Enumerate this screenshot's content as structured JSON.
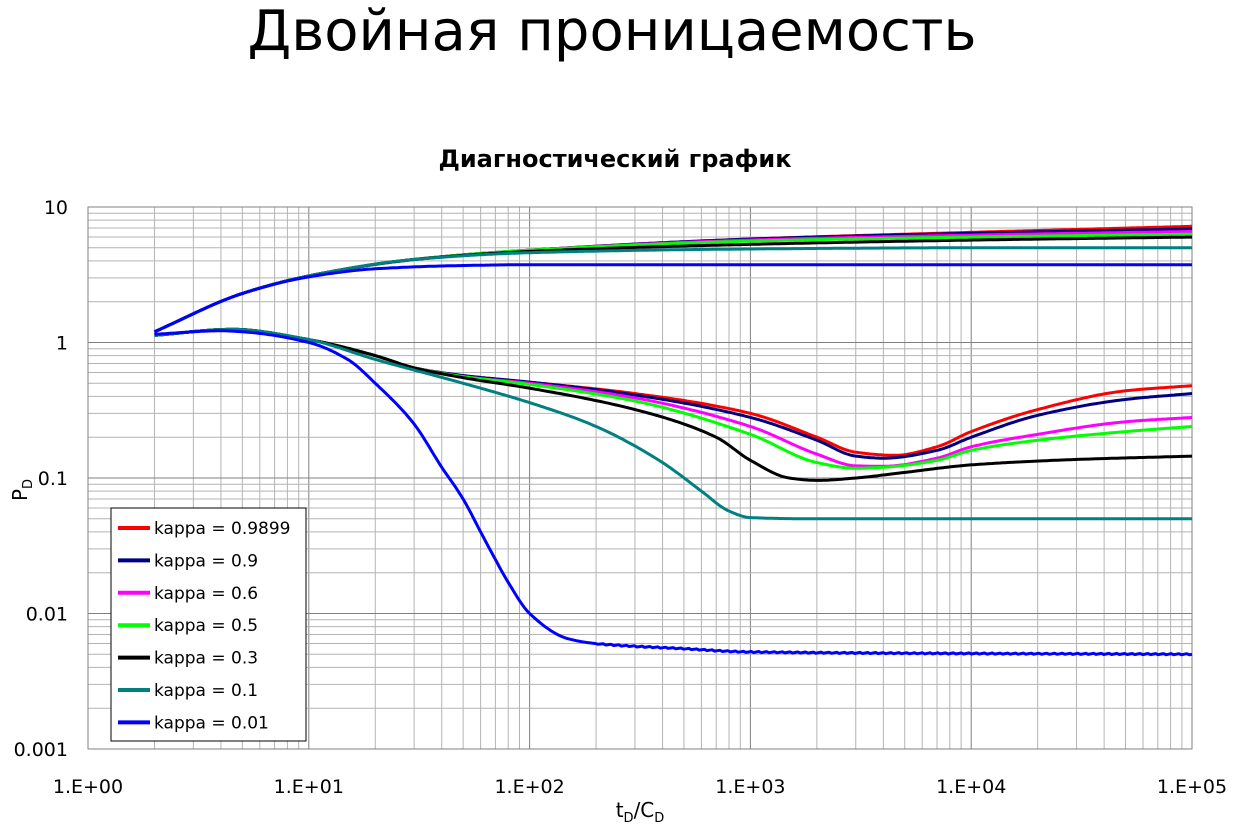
{
  "page": {
    "title": "Двойная проницаемость"
  },
  "chart_data": {
    "type": "line",
    "title": "Диагностический график",
    "xlabel": "tD/CD",
    "xlabel_main": "t",
    "xlabel_sub1": "D",
    "xlabel_slash": "/C",
    "xlabel_sub2": "D",
    "ylabel": "PD",
    "ylabel_main": "P",
    "ylabel_sub": "D",
    "x_scale": "log",
    "y_scale": "log",
    "xlim": [
      1,
      100000
    ],
    "ylim": [
      0.001,
      10
    ],
    "x_ticks": [
      "1.E+00",
      "1.E+01",
      "1.E+02",
      "1.E+03",
      "1.E+04",
      "1.E+05"
    ],
    "y_ticks": [
      "0.001",
      "0.01",
      "0.1",
      "1",
      "10"
    ],
    "grid": true,
    "legend_position": "bottom-left",
    "series": [
      {
        "name": "kappa = 0.9899",
        "color": "#ff0000",
        "pressure": [
          [
            2,
            1.2
          ],
          [
            5,
            2.3
          ],
          [
            10,
            3.1
          ],
          [
            30,
            4.1
          ],
          [
            100,
            4.8
          ],
          [
            1000,
            5.8
          ],
          [
            10000,
            6.5
          ],
          [
            100000,
            7.2
          ]
        ],
        "derivative": [
          [
            2,
            1.13
          ],
          [
            4.5,
            1.25
          ],
          [
            10,
            1.05
          ],
          [
            20,
            0.8
          ],
          [
            30,
            0.65
          ],
          [
            50,
            0.57
          ],
          [
            100,
            0.51
          ],
          [
            300,
            0.42
          ],
          [
            1000,
            0.3
          ],
          [
            2000,
            0.2
          ],
          [
            3000,
            0.155
          ],
          [
            4500,
            0.147
          ],
          [
            7000,
            0.17
          ],
          [
            10000,
            0.22
          ],
          [
            20000,
            0.32
          ],
          [
            50000,
            0.44
          ],
          [
            100000,
            0.48
          ]
        ]
      },
      {
        "name": "kappa = 0.9",
        "color": "#000080",
        "pressure": [
          [
            2,
            1.2
          ],
          [
            5,
            2.3
          ],
          [
            10,
            3.1
          ],
          [
            30,
            4.1
          ],
          [
            100,
            4.8
          ],
          [
            1000,
            5.8
          ],
          [
            10000,
            6.4
          ],
          [
            100000,
            6.9
          ]
        ],
        "derivative": [
          [
            2,
            1.13
          ],
          [
            4.5,
            1.25
          ],
          [
            10,
            1.05
          ],
          [
            20,
            0.8
          ],
          [
            30,
            0.65
          ],
          [
            50,
            0.57
          ],
          [
            100,
            0.51
          ],
          [
            300,
            0.41
          ],
          [
            1000,
            0.28
          ],
          [
            2000,
            0.19
          ],
          [
            3000,
            0.145
          ],
          [
            4000,
            0.14
          ],
          [
            7000,
            0.16
          ],
          [
            10000,
            0.2
          ],
          [
            20000,
            0.29
          ],
          [
            50000,
            0.38
          ],
          [
            100000,
            0.42
          ]
        ]
      },
      {
        "name": "kappa = 0.6",
        "color": "#ff00ff",
        "pressure": [
          [
            2,
            1.2
          ],
          [
            5,
            2.3
          ],
          [
            10,
            3.1
          ],
          [
            30,
            4.1
          ],
          [
            100,
            4.8
          ],
          [
            1000,
            5.7
          ],
          [
            10000,
            6.2
          ],
          [
            100000,
            6.6
          ]
        ],
        "derivative": [
          [
            2,
            1.13
          ],
          [
            4.5,
            1.25
          ],
          [
            10,
            1.05
          ],
          [
            20,
            0.8
          ],
          [
            30,
            0.65
          ],
          [
            50,
            0.56
          ],
          [
            100,
            0.5
          ],
          [
            300,
            0.39
          ],
          [
            1000,
            0.24
          ],
          [
            2000,
            0.15
          ],
          [
            3000,
            0.123
          ],
          [
            4000,
            0.122
          ],
          [
            7000,
            0.14
          ],
          [
            10000,
            0.17
          ],
          [
            20000,
            0.21
          ],
          [
            50000,
            0.26
          ],
          [
            100000,
            0.28
          ]
        ]
      },
      {
        "name": "kappa = 0.5",
        "color": "#00ff00",
        "pressure": [
          [
            2,
            1.2
          ],
          [
            5,
            2.3
          ],
          [
            10,
            3.1
          ],
          [
            30,
            4.1
          ],
          [
            100,
            4.8
          ],
          [
            1000,
            5.6
          ],
          [
            10000,
            6.0
          ],
          [
            100000,
            6.3
          ]
        ],
        "derivative": [
          [
            2,
            1.13
          ],
          [
            4.5,
            1.25
          ],
          [
            10,
            1.05
          ],
          [
            20,
            0.8
          ],
          [
            30,
            0.65
          ],
          [
            50,
            0.56
          ],
          [
            100,
            0.49
          ],
          [
            300,
            0.37
          ],
          [
            1000,
            0.21
          ],
          [
            2000,
            0.13
          ],
          [
            3000,
            0.118
          ],
          [
            4000,
            0.12
          ],
          [
            7000,
            0.135
          ],
          [
            10000,
            0.16
          ],
          [
            20000,
            0.19
          ],
          [
            50000,
            0.22
          ],
          [
            100000,
            0.24
          ]
        ]
      },
      {
        "name": "kappa = 0.3",
        "color": "#000000",
        "pressure": [
          [
            2,
            1.2
          ],
          [
            5,
            2.3
          ],
          [
            10,
            3.1
          ],
          [
            30,
            4.1
          ],
          [
            100,
            4.7
          ],
          [
            1000,
            5.3
          ],
          [
            10000,
            5.7
          ],
          [
            100000,
            6.0
          ]
        ],
        "derivative": [
          [
            2,
            1.13
          ],
          [
            4.5,
            1.25
          ],
          [
            10,
            1.05
          ],
          [
            20,
            0.8
          ],
          [
            30,
            0.65
          ],
          [
            50,
            0.55
          ],
          [
            100,
            0.46
          ],
          [
            300,
            0.32
          ],
          [
            700,
            0.2
          ],
          [
            1000,
            0.135
          ],
          [
            1500,
            0.1
          ],
          [
            2000,
            0.096
          ],
          [
            3000,
            0.1
          ],
          [
            5000,
            0.11
          ],
          [
            10000,
            0.125
          ],
          [
            30000,
            0.137
          ],
          [
            100000,
            0.145
          ]
        ]
      },
      {
        "name": "kappa = 0.1",
        "color": "#008080",
        "pressure": [
          [
            2,
            1.2
          ],
          [
            5,
            2.3
          ],
          [
            10,
            3.1
          ],
          [
            30,
            4.1
          ],
          [
            100,
            4.6
          ],
          [
            1000,
            4.9
          ],
          [
            10000,
            5.0
          ],
          [
            100000,
            5.0
          ]
        ],
        "derivative": [
          [
            2,
            1.13
          ],
          [
            4.5,
            1.25
          ],
          [
            10,
            1.05
          ],
          [
            20,
            0.75
          ],
          [
            50,
            0.5
          ],
          [
            100,
            0.36
          ],
          [
            200,
            0.24
          ],
          [
            400,
            0.13
          ],
          [
            600,
            0.08
          ],
          [
            800,
            0.057
          ],
          [
            1000,
            0.051
          ],
          [
            2000,
            0.05
          ],
          [
            100000,
            0.05
          ]
        ]
      },
      {
        "name": "kappa = 0.01",
        "color": "#0000ff",
        "pressure": [
          [
            2,
            1.2
          ],
          [
            5,
            2.3
          ],
          [
            10,
            3.05
          ],
          [
            20,
            3.5
          ],
          [
            50,
            3.7
          ],
          [
            100,
            3.75
          ],
          [
            1000,
            3.75
          ],
          [
            100000,
            3.75
          ]
        ],
        "derivative": [
          [
            2,
            1.15
          ],
          [
            4,
            1.22
          ],
          [
            5,
            1.2
          ],
          [
            10,
            1.0
          ],
          [
            15,
            0.75
          ],
          [
            20,
            0.5
          ],
          [
            30,
            0.25
          ],
          [
            40,
            0.12
          ],
          [
            50,
            0.07
          ],
          [
            60,
            0.04
          ],
          [
            70,
            0.025
          ],
          [
            80,
            0.017
          ],
          [
            100,
            0.01
          ],
          [
            150,
            0.0065
          ],
          [
            200,
            0.006
          ],
          [
            500,
            0.0055
          ],
          [
            1000,
            0.0052
          ],
          [
            100000,
            0.005
          ]
        ]
      }
    ]
  }
}
